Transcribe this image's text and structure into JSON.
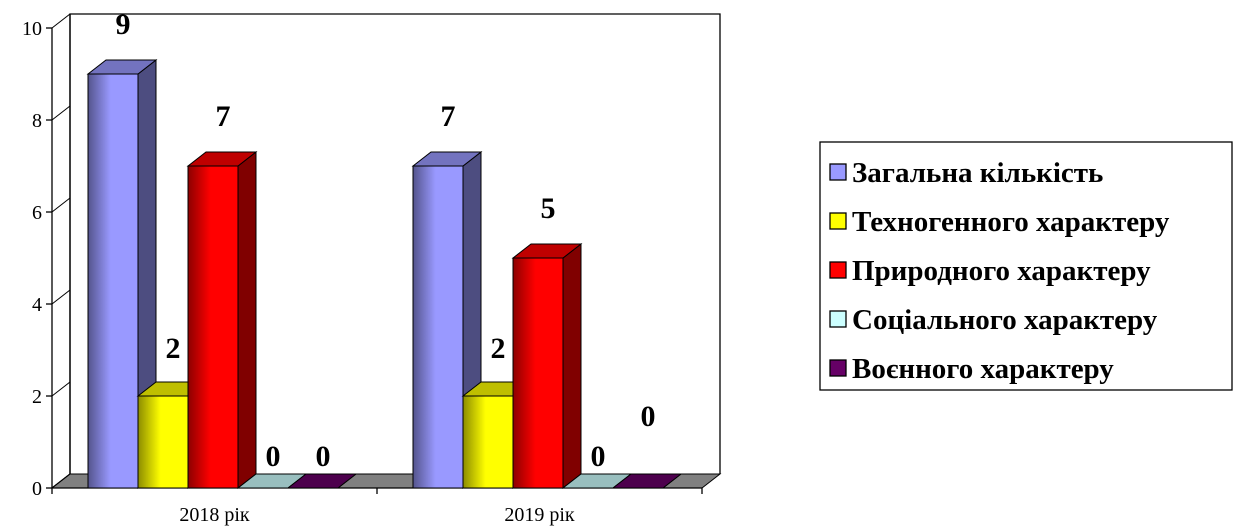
{
  "chart_data": {
    "type": "bar",
    "title": "",
    "xlabel": "",
    "ylabel": "",
    "ylim": [
      0,
      10
    ],
    "yticks": [
      0,
      2,
      4,
      6,
      8,
      10
    ],
    "categories": [
      "2018 рік",
      "2019 рік"
    ],
    "series": [
      {
        "name": "Загальна кількість",
        "values": [
          9,
          7
        ],
        "color": "#9999ff"
      },
      {
        "name": "Техногенного характеру",
        "values": [
          2,
          2
        ],
        "color": "#ffff00"
      },
      {
        "name": "Природного характеру",
        "values": [
          7,
          5
        ],
        "color": "#ff0000"
      },
      {
        "name": "Соціального характеру",
        "values": [
          0,
          0
        ],
        "color": "#ccffff"
      },
      {
        "name": "Воєнного характеру",
        "values": [
          0,
          0
        ],
        "color": "#660066"
      }
    ],
    "data_labels": [
      [
        "9",
        "7"
      ],
      [
        "2",
        "2"
      ],
      [
        "7",
        "5"
      ],
      [
        "0",
        "0"
      ],
      [
        "0",
        "0"
      ]
    ],
    "legend_position": "right",
    "grid": false,
    "style": "3d-bar"
  }
}
